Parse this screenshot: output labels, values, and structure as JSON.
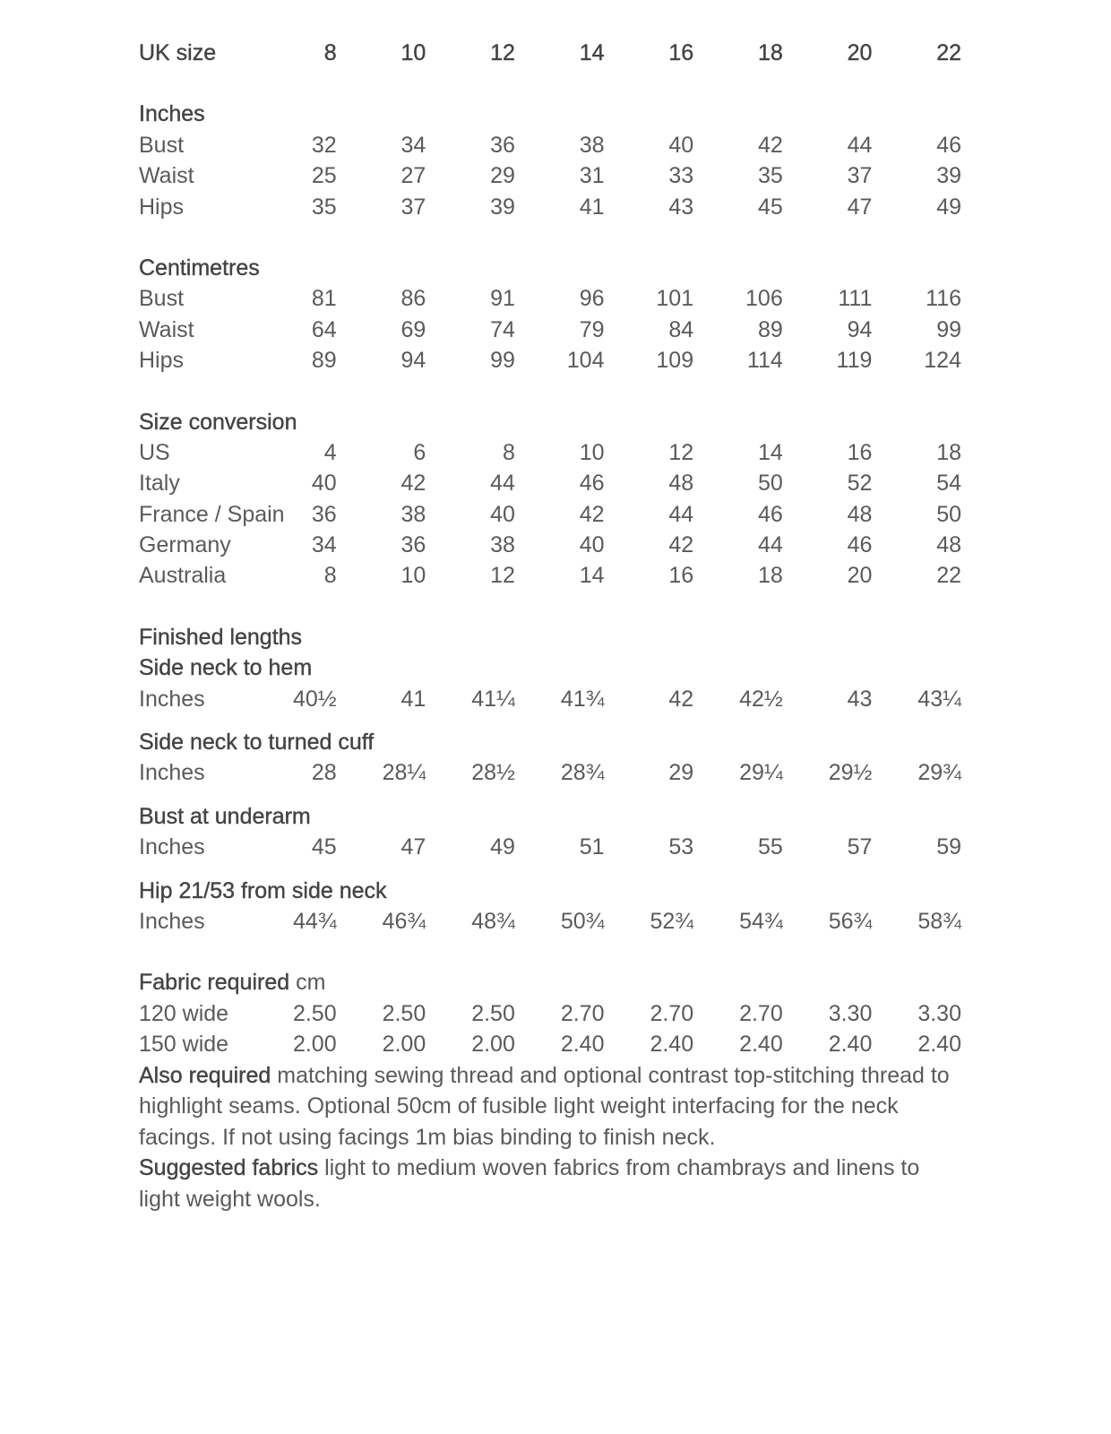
{
  "sections": [
    {
      "headings": [],
      "rows": [
        {
          "label": "UK size",
          "is_heading": true,
          "values": [
            "8",
            "10",
            "12",
            "14",
            "16",
            "18",
            "20",
            "22"
          ]
        }
      ]
    },
    {
      "headings": [
        {
          "text": "Inches"
        }
      ],
      "rows": [
        {
          "label": "Bust",
          "values": [
            "32",
            "34",
            "36",
            "38",
            "40",
            "42",
            "44",
            "46"
          ]
        },
        {
          "label": "Waist",
          "values": [
            "25",
            "27",
            "29",
            "31",
            "33",
            "35",
            "37",
            "39"
          ]
        },
        {
          "label": "Hips",
          "values": [
            "35",
            "37",
            "39",
            "41",
            "43",
            "45",
            "47",
            "49"
          ]
        }
      ]
    },
    {
      "headings": [
        {
          "text": "Centimetres"
        }
      ],
      "rows": [
        {
          "label": "Bust",
          "values": [
            "81",
            "86",
            "91",
            "96",
            "101",
            "106",
            "111",
            "116"
          ]
        },
        {
          "label": "Waist",
          "values": [
            "64",
            "69",
            "74",
            "79",
            "84",
            "89",
            "94",
            "99"
          ]
        },
        {
          "label": "Hips",
          "values": [
            "89",
            "94",
            "99",
            "104",
            "109",
            "114",
            "119",
            "124"
          ]
        }
      ]
    },
    {
      "headings": [
        {
          "text": "Size conversion"
        }
      ],
      "rows": [
        {
          "label": "US",
          "values": [
            "4",
            "6",
            "8",
            "10",
            "12",
            "14",
            "16",
            "18"
          ]
        },
        {
          "label": "Italy",
          "values": [
            "40",
            "42",
            "44",
            "46",
            "48",
            "50",
            "52",
            "54"
          ]
        },
        {
          "label": "France / Spain",
          "values": [
            "36",
            "38",
            "40",
            "42",
            "44",
            "46",
            "48",
            "50"
          ]
        },
        {
          "label": "Germany",
          "values": [
            "34",
            "36",
            "38",
            "40",
            "42",
            "44",
            "46",
            "48"
          ]
        },
        {
          "label": "Australia",
          "values": [
            "8",
            "10",
            "12",
            "14",
            "16",
            "18",
            "20",
            "22"
          ]
        }
      ]
    },
    {
      "headings": [
        {
          "text": "Finished lengths"
        },
        {
          "text": "Side neck to hem"
        }
      ],
      "rows": [
        {
          "label": "Inches",
          "values": [
            "40½",
            "41",
            "41¼",
            "41¾",
            "42",
            "42½",
            "43",
            "43¼"
          ]
        }
      ]
    },
    {
      "headings": [
        {
          "text": "Side neck to turned cuff"
        }
      ],
      "rows": [
        {
          "label": "Inches",
          "values": [
            "28",
            "28¼",
            "28½",
            "28¾",
            "29",
            "29¼",
            "29½",
            "29¾"
          ]
        }
      ]
    },
    {
      "headings": [
        {
          "text": "Bust at underarm"
        }
      ],
      "rows": [
        {
          "label": "Inches",
          "values": [
            "45",
            "47",
            "49",
            "51",
            "53",
            "55",
            "57",
            "59"
          ]
        }
      ]
    },
    {
      "headings": [
        {
          "text": "Hip 21/53 from side neck"
        }
      ],
      "rows": [
        {
          "label": "Inches",
          "values": [
            "44¾",
            "46¾",
            "48¾",
            "50¾",
            "52¾",
            "54¾",
            "56¾",
            "58¾"
          ]
        }
      ]
    },
    {
      "headings": [
        {
          "text": "Fabric required",
          "suffix": " cm"
        }
      ],
      "rows": [
        {
          "label": "120 wide",
          "values": [
            "2.50",
            "2.50",
            "2.50",
            "2.70",
            "2.70",
            "2.70",
            "3.30",
            "3.30"
          ]
        },
        {
          "label": "150 wide",
          "values": [
            "2.00",
            "2.00",
            "2.00",
            "2.40",
            "2.40",
            "2.40",
            "2.40",
            "2.40"
          ]
        }
      ]
    }
  ],
  "notes": {
    "also_required_label": "Also required",
    "also_required_text": " matching sewing thread and optional contrast top-stitching thread to highlight seams. Optional 50cm of fusible light weight interfacing for the neck facings. If not using facings 1m bias binding to finish neck.",
    "suggested_fabrics_label": "Suggested fabrics",
    "suggested_fabrics_text": " light to medium woven fabrics from chambrays and linens to light weight wools."
  }
}
